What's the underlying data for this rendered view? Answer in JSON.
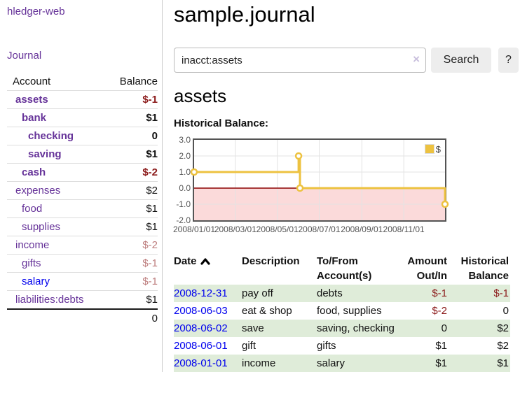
{
  "sidebar": {
    "brand": "hledger-web",
    "journal_link": "Journal",
    "accounts_table": {
      "headers": {
        "account": "Account",
        "balance": "Balance"
      },
      "rows": [
        {
          "name": "assets",
          "balance": "$-1",
          "depth": 1,
          "bold": true,
          "negative": true
        },
        {
          "name": "bank",
          "balance": "$1",
          "depth": 2,
          "bold": true
        },
        {
          "name": "checking",
          "balance": "0",
          "depth": 3,
          "bold": true
        },
        {
          "name": "saving",
          "balance": "$1",
          "depth": 3,
          "bold": true
        },
        {
          "name": "cash",
          "balance": "$-2",
          "depth": 2,
          "bold": true,
          "negative": true
        },
        {
          "name": "expenses",
          "balance": "$2",
          "depth": 1
        },
        {
          "name": "food",
          "balance": "$1",
          "depth": 2
        },
        {
          "name": "supplies",
          "balance": "$1",
          "depth": 2
        },
        {
          "name": "income",
          "balance": "$-2",
          "depth": 1,
          "negative_light": true
        },
        {
          "name": "gifts",
          "balance": "$-1",
          "depth": 2,
          "negative_light": true
        },
        {
          "name": "salary",
          "balance": "$-1",
          "depth": 2,
          "negative_light": true,
          "unvisited": true
        },
        {
          "name": "liabilities:debts",
          "balance": "$1",
          "depth": 1
        }
      ],
      "total": "0"
    }
  },
  "main": {
    "title": "sample.journal",
    "search": {
      "value": "inacct:assets",
      "clear_icon": "×",
      "search_button": "Search",
      "help_button": "?"
    },
    "account_heading": "assets",
    "chart_data": {
      "type": "line",
      "step": true,
      "title": "Historical Balance:",
      "series": [
        {
          "name": "$",
          "color": "#EDC240",
          "points": [
            [
              "2008-01-01",
              1
            ],
            [
              "2008-06-01",
              2
            ],
            [
              "2008-06-03",
              0
            ],
            [
              "2008-12-31",
              -1
            ]
          ]
        }
      ],
      "x_range": [
        "2008-01-01",
        "2008-12-31"
      ],
      "x_ticks": [
        {
          "date": "2008-01-01",
          "label": "2008/01/01"
        },
        {
          "date": "2008-03-01",
          "label": "2008/03/01"
        },
        {
          "date": "2008-05-01",
          "label": "2008/05/01"
        },
        {
          "date": "2008-07-01",
          "label": "2008/07/01"
        },
        {
          "date": "2008-09-01",
          "label": "2008/09/01"
        },
        {
          "date": "2008-11-01",
          "label": "2008/11/01"
        }
      ],
      "y_ticks": [
        "3.0",
        "2.0",
        "1.0",
        "0.0",
        "-1.0",
        "-2.0"
      ],
      "ylim": [
        -2,
        3
      ],
      "grid": true,
      "legend_position": "top-right",
      "grid_color": "#e3e3e3",
      "negative_region_color": "#fbdada",
      "zero_line_color": "#8b0000",
      "marker": {
        "fill": "#ffffff",
        "radius": 4
      }
    },
    "register": {
      "headers": [
        "Date",
        "Description",
        "To/From Account(s)",
        "Amount Out/In",
        "Historical Balance"
      ],
      "sort_icon": "chevron-up",
      "rows": [
        {
          "date": "2008-12-31",
          "description": "pay off",
          "to_from": "debts",
          "amount": "$-1",
          "amount_negative": true,
          "balance": "$-1",
          "balance_negative": true
        },
        {
          "date": "2008-06-03",
          "description": "eat & shop",
          "to_from": "food, supplies",
          "amount": "$-2",
          "amount_negative": true,
          "balance": "0"
        },
        {
          "date": "2008-06-02",
          "description": "save",
          "to_from": "saving, checking",
          "amount": "0",
          "balance": "$2"
        },
        {
          "date": "2008-06-01",
          "description": "gift",
          "to_from": "gifts",
          "amount": "$1",
          "balance": "$2"
        },
        {
          "date": "2008-01-01",
          "description": "income",
          "to_from": "salary",
          "amount": "$1",
          "balance": "$1"
        }
      ]
    }
  }
}
